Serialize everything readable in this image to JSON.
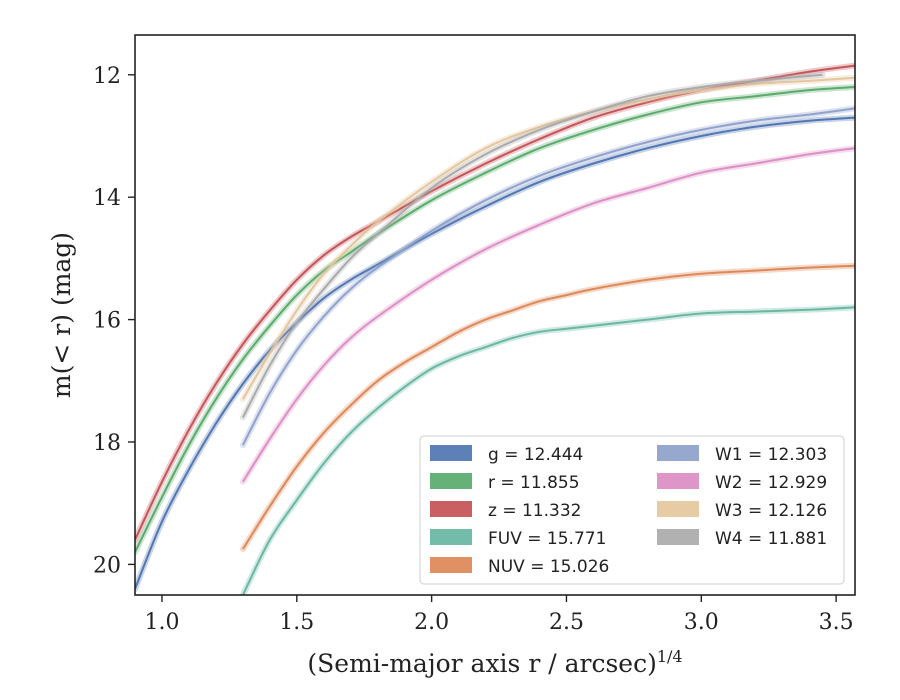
{
  "chart_data": {
    "type": "line",
    "title": "",
    "xlabel": "(Semi-major axis r / arcsec)",
    "xlabel_sup": "1/4",
    "ylabel": "m(< r) (mag)",
    "xlim": [
      0.9,
      3.57
    ],
    "ylim": [
      20.5,
      11.35
    ],
    "y_inverted": true,
    "x_ticks": [
      1.0,
      1.5,
      2.0,
      2.5,
      3.0,
      3.5
    ],
    "x_tick_labels": [
      "1.0",
      "1.5",
      "2.0",
      "2.5",
      "3.0",
      "3.5"
    ],
    "y_ticks": [
      12,
      14,
      16,
      18,
      20
    ],
    "y_tick_labels": [
      "12",
      "14",
      "16",
      "18",
      "20"
    ],
    "grid": false,
    "legend_position": "lower-right",
    "legend_columns": 2,
    "series": [
      {
        "key": "g",
        "name": "g = 12.444",
        "color": "#4c72b0",
        "x": [
          0.9,
          1.0,
          1.1,
          1.2,
          1.3,
          1.4,
          1.5,
          1.6,
          1.7,
          1.8,
          2.0,
          2.2,
          2.4,
          2.6,
          2.8,
          3.0,
          3.2,
          3.4,
          3.57
        ],
        "y": [
          20.4,
          19.3,
          18.45,
          17.7,
          17.05,
          16.5,
          16.05,
          15.65,
          15.35,
          15.1,
          14.6,
          14.15,
          13.75,
          13.45,
          13.2,
          13.0,
          12.85,
          12.75,
          12.7
        ]
      },
      {
        "key": "r",
        "name": "r = 11.855",
        "color": "#55a868",
        "x": [
          0.9,
          1.0,
          1.1,
          1.2,
          1.3,
          1.4,
          1.5,
          1.6,
          1.7,
          1.8,
          2.0,
          2.2,
          2.4,
          2.6,
          2.8,
          3.0,
          3.2,
          3.4,
          3.57
        ],
        "y": [
          19.8,
          18.9,
          18.05,
          17.3,
          16.65,
          16.1,
          15.6,
          15.2,
          14.9,
          14.6,
          14.05,
          13.6,
          13.2,
          12.9,
          12.65,
          12.45,
          12.35,
          12.25,
          12.2
        ]
      },
      {
        "key": "z",
        "name": "z = 11.332",
        "color": "#c44e52",
        "x": [
          0.9,
          1.0,
          1.1,
          1.2,
          1.3,
          1.4,
          1.5,
          1.6,
          1.7,
          1.8,
          2.0,
          2.2,
          2.4,
          2.6,
          2.8,
          3.0,
          3.2,
          3.4,
          3.57
        ],
        "y": [
          19.6,
          18.65,
          17.8,
          17.05,
          16.4,
          15.85,
          15.35,
          14.95,
          14.65,
          14.4,
          13.9,
          13.45,
          13.05,
          12.7,
          12.45,
          12.25,
          12.1,
          11.95,
          11.85
        ]
      },
      {
        "key": "FUV",
        "name": "FUV = 15.771",
        "color": "#64b5a0",
        "x": [
          1.3,
          1.4,
          1.5,
          1.6,
          1.7,
          1.8,
          1.9,
          2.0,
          2.1,
          2.2,
          2.3,
          2.4,
          2.5,
          2.6,
          2.8,
          3.0,
          3.2,
          3.4,
          3.57
        ],
        "y": [
          20.5,
          19.6,
          18.95,
          18.35,
          17.85,
          17.45,
          17.1,
          16.8,
          16.6,
          16.45,
          16.3,
          16.2,
          16.15,
          16.1,
          16.0,
          15.9,
          15.87,
          15.84,
          15.8
        ]
      },
      {
        "key": "NUV",
        "name": "NUV = 15.026",
        "color": "#dd8452",
        "x": [
          1.3,
          1.4,
          1.5,
          1.6,
          1.7,
          1.8,
          1.9,
          2.0,
          2.1,
          2.2,
          2.3,
          2.4,
          2.5,
          2.6,
          2.8,
          3.0,
          3.2,
          3.4,
          3.57
        ],
        "y": [
          19.75,
          19.05,
          18.4,
          17.85,
          17.4,
          17.0,
          16.7,
          16.45,
          16.2,
          16.0,
          15.85,
          15.7,
          15.6,
          15.5,
          15.35,
          15.25,
          15.2,
          15.15,
          15.12
        ]
      },
      {
        "key": "W1",
        "name": "W1 = 12.303",
        "color": "#8c9fca",
        "x": [
          1.3,
          1.4,
          1.5,
          1.6,
          1.7,
          1.8,
          2.0,
          2.2,
          2.4,
          2.6,
          2.8,
          3.0,
          3.2,
          3.4,
          3.57
        ],
        "y": [
          18.05,
          17.2,
          16.5,
          15.95,
          15.5,
          15.15,
          14.55,
          14.05,
          13.65,
          13.35,
          13.1,
          12.9,
          12.75,
          12.65,
          12.55
        ]
      },
      {
        "key": "W2",
        "name": "W2 = 12.929",
        "color": "#da8bc3",
        "x": [
          1.3,
          1.4,
          1.5,
          1.6,
          1.7,
          1.8,
          2.0,
          2.2,
          2.4,
          2.6,
          2.8,
          3.0,
          3.2,
          3.4,
          3.57
        ],
        "y": [
          18.65,
          17.95,
          17.3,
          16.75,
          16.3,
          15.95,
          15.35,
          14.85,
          14.45,
          14.1,
          13.85,
          13.6,
          13.45,
          13.3,
          13.2
        ]
      },
      {
        "key": "W3",
        "name": "W3 = 12.126",
        "color": "#e3c59a",
        "x": [
          1.3,
          1.4,
          1.5,
          1.6,
          1.7,
          1.8,
          2.0,
          2.2,
          2.4,
          2.6,
          2.8,
          3.0,
          3.2,
          3.4,
          3.57
        ],
        "y": [
          17.3,
          16.55,
          15.85,
          15.25,
          14.8,
          14.4,
          13.75,
          13.2,
          12.85,
          12.6,
          12.4,
          12.25,
          12.15,
          12.1,
          12.05
        ]
      },
      {
        "key": "W4",
        "name": "W4 = 11.881",
        "color": "#a8a8a8",
        "x": [
          1.3,
          1.4,
          1.5,
          1.6,
          1.7,
          1.8,
          2.0,
          2.2,
          2.4,
          2.6,
          2.8,
          3.0,
          3.2,
          3.45
        ],
        "y": [
          17.6,
          16.75,
          16.05,
          15.5,
          15.0,
          14.6,
          13.85,
          13.3,
          12.9,
          12.6,
          12.35,
          12.2,
          12.1,
          12.0
        ]
      }
    ]
  }
}
